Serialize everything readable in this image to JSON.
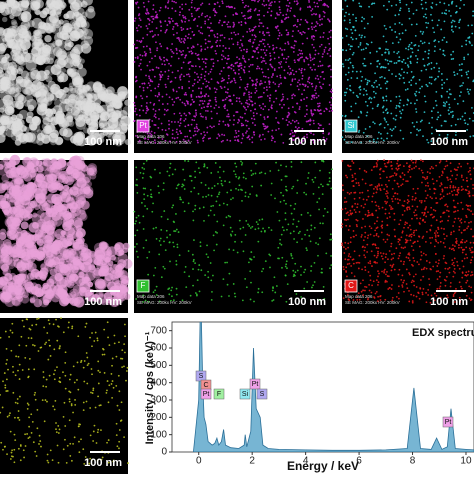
{
  "panels": [
    {
      "scale_bar": "100 nm"
    },
    {
      "scale_bar": "100 nm",
      "element": "Pt",
      "map_data": "Map data 206",
      "settings": "SE MAG: 200kx HV: 200kV"
    },
    {
      "scale_bar": "100 nm",
      "element": "Si",
      "map_data": "Map data 206",
      "settings": "SE MAG: 200kx HV: 200kV"
    },
    {
      "scale_bar": "100 nm"
    },
    {
      "scale_bar": "100 nm",
      "element": "F",
      "map_data": "Map data 206",
      "settings": "SE MAG: 200kx HV: 200kV"
    },
    {
      "scale_bar": "100 nm",
      "element": "C",
      "map_data": "Map data 206",
      "settings": "SE MAG: 200kx HV: 200kV"
    },
    {
      "scale_bar": "100 nm"
    }
  ],
  "chart_data": {
    "type": "area",
    "title": "EDX spectru",
    "x_label": "Energy / keV",
    "y_label": "Intensity / cps (keV)⁻¹",
    "color": "#4a9cc4",
    "x": [
      -0.2,
      0,
      0.05,
      0.1,
      0.15,
      0.2,
      0.27,
      0.35,
      0.5,
      0.6,
      0.68,
      0.75,
      0.85,
      0.93,
      1.0,
      1.2,
      1.5,
      1.7,
      1.74,
      1.8,
      1.95,
      2.05,
      2.15,
      2.3,
      2.4,
      2.6,
      3,
      4,
      5,
      6,
      7,
      7.8,
      8.05,
      8.3,
      8.7,
      8.9,
      9.1,
      9.3,
      9.44,
      9.6,
      10,
      10.3
    ],
    "values": [
      0,
      300,
      760,
      760,
      400,
      200,
      160,
      60,
      40,
      50,
      80,
      40,
      60,
      130,
      40,
      25,
      20,
      40,
      100,
      30,
      120,
      600,
      250,
      200,
      40,
      20,
      15,
      12,
      10,
      10,
      12,
      20,
      370,
      20,
      15,
      80,
      15,
      30,
      250,
      20,
      15,
      12
    ],
    "xlim": [
      -1,
      10.3
    ],
    "ylim": [
      0,
      750
    ],
    "xticks": [
      0,
      2,
      4,
      6,
      8,
      10
    ],
    "yticks": [
      0,
      100,
      200,
      300,
      400,
      500,
      600,
      700
    ],
    "peak_labels": [
      "S",
      "C",
      "Pt",
      "F",
      "Si",
      "Pt",
      "S",
      "Pt"
    ]
  }
}
